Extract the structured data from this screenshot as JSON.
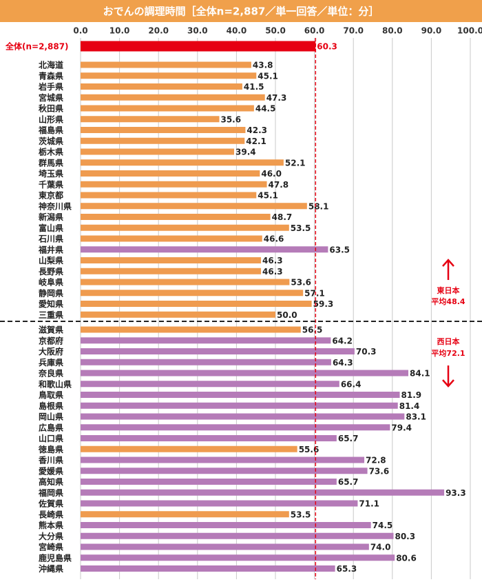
{
  "chart_data": {
    "type": "bar",
    "orientation": "horizontal",
    "title": "おでんの調理時間［全体n=2,887／単一回答／単位：分］",
    "xlim": [
      0,
      100
    ],
    "xticks": [
      {
        "value": 0,
        "label": "0.0"
      },
      {
        "value": 10,
        "label": "10.0"
      },
      {
        "value": 20,
        "label": "20.0"
      },
      {
        "value": 30,
        "label": "30.0"
      },
      {
        "value": 40,
        "label": "40.0"
      },
      {
        "value": 50,
        "label": "50.0"
      },
      {
        "value": 60,
        "label": "60.0"
      },
      {
        "value": 70,
        "label": "70.0"
      },
      {
        "value": 80,
        "label": "80.0"
      },
      {
        "value": 90,
        "label": "90.0"
      },
      {
        "value": 100,
        "label": "100.0"
      }
    ],
    "grid": true,
    "overall": {
      "label": "全体(n=2,887)",
      "value": 60.3,
      "value_label": "60.3",
      "color": "#e60012"
    },
    "groups": [
      {
        "label": "東日本",
        "note": "平均48.4",
        "categories": [
          "北海道",
          "青森県",
          "岩手県",
          "宮城県",
          "秋田県",
          "山形県",
          "福島県",
          "茨城県",
          "栃木県",
          "群馬県",
          "埼玉県",
          "千葉県",
          "東京都",
          "神奈川県",
          "新潟県",
          "富山県",
          "石川県",
          "福井県",
          "山梨県",
          "長野県",
          "岐阜県",
          "静岡県",
          "愛知県",
          "三重県"
        ],
        "values": [
          43.8,
          45.1,
          41.5,
          47.3,
          44.5,
          35.6,
          42.3,
          42.1,
          39.4,
          52.1,
          46,
          47.8,
          45.1,
          58.1,
          48.7,
          53.5,
          46.6,
          63.5,
          46.3,
          46.3,
          53.6,
          57.1,
          59.3,
          50
        ],
        "value_labels": [
          "43.8",
          "45.1",
          "41.5",
          "47.3",
          "44.5",
          "35.6",
          "42.3",
          "42.1",
          "39.4",
          "52.1",
          "46.0",
          "47.8",
          "45.1",
          "58.1",
          "48.7",
          "53.5",
          "46.6",
          "63.5",
          "46.3",
          "46.3",
          "53.6",
          "57.1",
          "59.3",
          "50.0"
        ],
        "colors": [
          "#ef9b4f",
          "#ef9b4f",
          "#ef9b4f",
          "#ef9b4f",
          "#ef9b4f",
          "#ef9b4f",
          "#ef9b4f",
          "#ef9b4f",
          "#ef9b4f",
          "#ef9b4f",
          "#ef9b4f",
          "#ef9b4f",
          "#ef9b4f",
          "#ef9b4f",
          "#ef9b4f",
          "#ef9b4f",
          "#ef9b4f",
          "#b57bb8",
          "#ef9b4f",
          "#ef9b4f",
          "#ef9b4f",
          "#ef9b4f",
          "#ef9b4f",
          "#ef9b4f"
        ]
      },
      {
        "label": "西日本",
        "note": "平均72.1",
        "categories": [
          "滋賀県",
          "京都府",
          "大阪府",
          "兵庫県",
          "奈良県",
          "和歌山県",
          "鳥取県",
          "島根県",
          "岡山県",
          "広島県",
          "山口県",
          "徳島県",
          "香川県",
          "愛媛県",
          "高知県",
          "福岡県",
          "佐賀県",
          "長崎県",
          "熊本県",
          "大分県",
          "宮崎県",
          "鹿児島県",
          "沖縄県"
        ],
        "values": [
          56.5,
          64.2,
          70.3,
          64.3,
          84.1,
          66.4,
          81.9,
          81.4,
          83.1,
          79.4,
          65.7,
          55.6,
          72.8,
          73.6,
          65.7,
          93.3,
          71.1,
          53.5,
          74.5,
          80.3,
          74,
          80.6,
          65.3
        ],
        "value_labels": [
          "56.5",
          "64.2",
          "70.3",
          "64.3",
          "84.1",
          "66.4",
          "81.9",
          "81.4",
          "83.1",
          "79.4",
          "65.7",
          "55.6",
          "72.8",
          "73.6",
          "65.7",
          "93.3",
          "71.1",
          "53.5",
          "74.5",
          "80.3",
          "74.0",
          "80.6",
          "65.3"
        ],
        "colors": [
          "#ef9b4f",
          "#b57bb8",
          "#b57bb8",
          "#b57bb8",
          "#b57bb8",
          "#b57bb8",
          "#b57bb8",
          "#b57bb8",
          "#b57bb8",
          "#b57bb8",
          "#b57bb8",
          "#ef9b4f",
          "#b57bb8",
          "#b57bb8",
          "#b57bb8",
          "#b57bb8",
          "#b57bb8",
          "#ef9b4f",
          "#b57bb8",
          "#b57bb8",
          "#b57bb8",
          "#b57bb8",
          "#b57bb8"
        ]
      }
    ]
  }
}
